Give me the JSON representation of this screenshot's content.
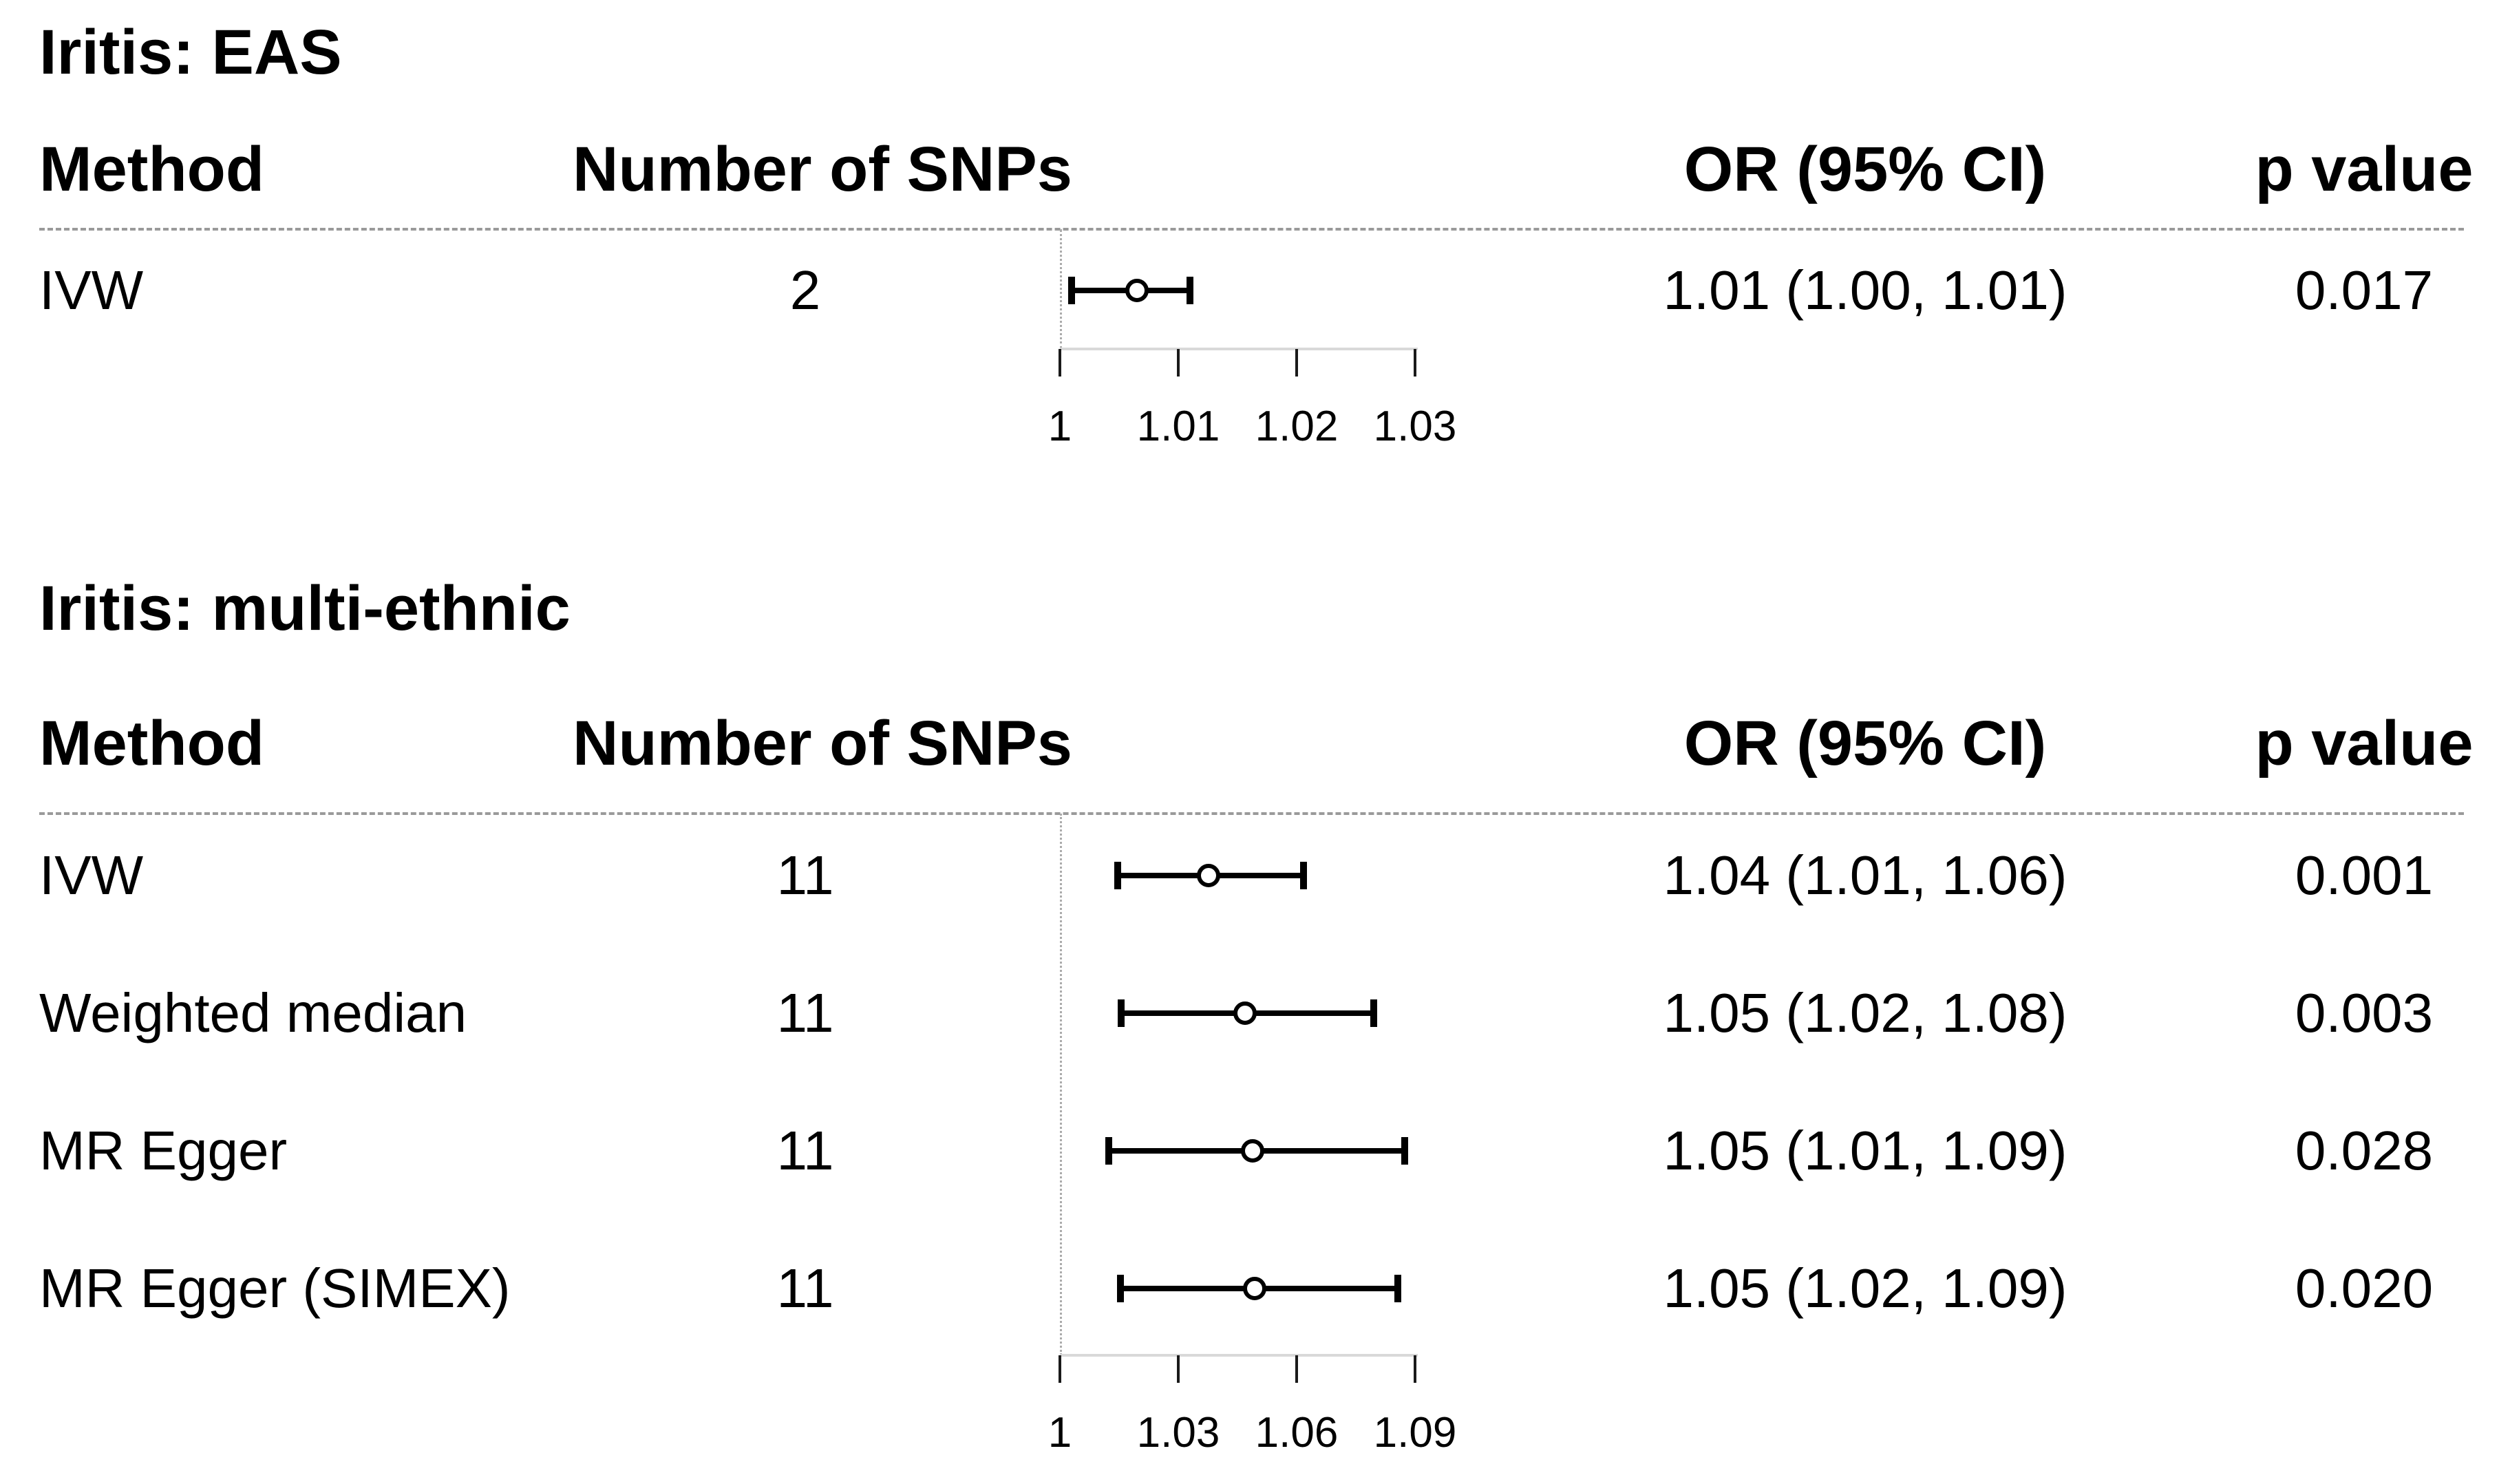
{
  "figure": {
    "background": "#ffffff",
    "text_color": "#000000",
    "separator_color": "#9a9a9a",
    "reference_line_color": "#ababab",
    "axis_line_color": "#d9d9d9",
    "bar_color": "#000000",
    "marker_style": "open-circle"
  },
  "chart_data": [
    {
      "type": "forest",
      "title": "Iritis: EAS",
      "columns": {
        "method": "Method",
        "snps": "Number of SNPs",
        "or": "OR (95% CI)",
        "p": "p value"
      },
      "rows": [
        {
          "method": "IVW",
          "n_snps": "2",
          "or_ci": "1.01 (1.00, 1.01)",
          "p": "0.017",
          "est": 1.0065,
          "lo": 1.001,
          "hi": 1.011
        }
      ],
      "axis": {
        "min": 1,
        "max": 1.03,
        "reference_value": 1,
        "ticks": [
          {
            "v": 1,
            "label": "1"
          },
          {
            "v": 1.01,
            "label": "1.01"
          },
          {
            "v": 1.02,
            "label": "1.02"
          },
          {
            "v": 1.03,
            "label": "1.03"
          }
        ]
      }
    },
    {
      "type": "forest",
      "title": "Iritis: multi-ethnic",
      "columns": {
        "method": "Method",
        "snps": "Number of SNPs",
        "or": "OR (95% CI)",
        "p": "p value"
      },
      "rows": [
        {
          "method": "IVW",
          "n_snps": "11",
          "or_ci": "1.04 (1.01, 1.06)",
          "p": "0.001",
          "est": 1.0377,
          "lo": 1.0147,
          "hi": 1.0618
        },
        {
          "method": "Weighted median",
          "n_snps": "11",
          "or_ci": "1.05 (1.02, 1.08)",
          "p": "0.003",
          "est": 1.047,
          "lo": 1.0155,
          "hi": 1.0795
        },
        {
          "method": "MR Egger",
          "n_snps": "11",
          "or_ci": "1.05 (1.01, 1.09)",
          "p": "0.028",
          "est": 1.0489,
          "lo": 1.0124,
          "hi": 1.0874
        },
        {
          "method": "MR Egger (SIMEX)",
          "n_snps": "11",
          "or_ci": "1.05 (1.02, 1.09)",
          "p": "0.020",
          "est": 1.0494,
          "lo": 1.0153,
          "hi": 1.0857
        }
      ],
      "axis": {
        "min": 1,
        "max": 1.09,
        "reference_value": 1,
        "ticks": [
          {
            "v": 1,
            "label": "1"
          },
          {
            "v": 1.03,
            "label": "1.03"
          },
          {
            "v": 1.06,
            "label": "1.06"
          },
          {
            "v": 1.09,
            "label": "1.09"
          }
        ]
      }
    }
  ]
}
